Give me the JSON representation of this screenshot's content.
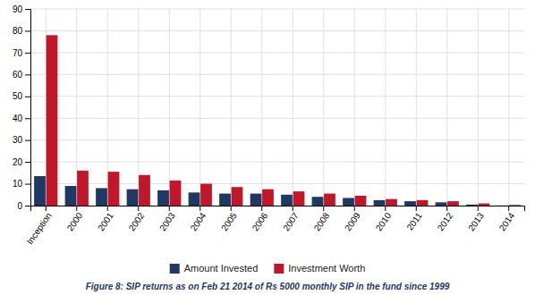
{
  "chart_data": {
    "type": "bar",
    "categories": [
      "Inception",
      "2000",
      "2001",
      "2002",
      "2003",
      "2004",
      "2005",
      "2006",
      "2007",
      "2008",
      "2009",
      "2010",
      "2011",
      "2012",
      "2013",
      "2014"
    ],
    "series": [
      {
        "name": "Amount Invested",
        "color": "#1F3864",
        "values": [
          13.5,
          9.0,
          8.0,
          7.5,
          7.0,
          6.0,
          5.5,
          5.5,
          5.0,
          4.0,
          3.5,
          2.5,
          2.0,
          1.5,
          0.5,
          0.05
        ]
      },
      {
        "name": "Investment Worth",
        "color": "#C0182A",
        "values": [
          78.0,
          16.0,
          15.5,
          14.0,
          11.5,
          10.0,
          8.5,
          7.5,
          6.5,
          5.5,
          4.5,
          3.0,
          2.5,
          2.0,
          1.0,
          0.3
        ]
      }
    ],
    "ylim": [
      0,
      90
    ],
    "yticks": [
      0,
      10,
      20,
      30,
      40,
      50,
      60,
      70,
      80,
      90
    ],
    "grid": true,
    "legend": "bottom",
    "caption": "Figure 8: SIP returns as on Feb 21 2014 of Rs 5000 monthly SIP in the fund since 1999"
  }
}
